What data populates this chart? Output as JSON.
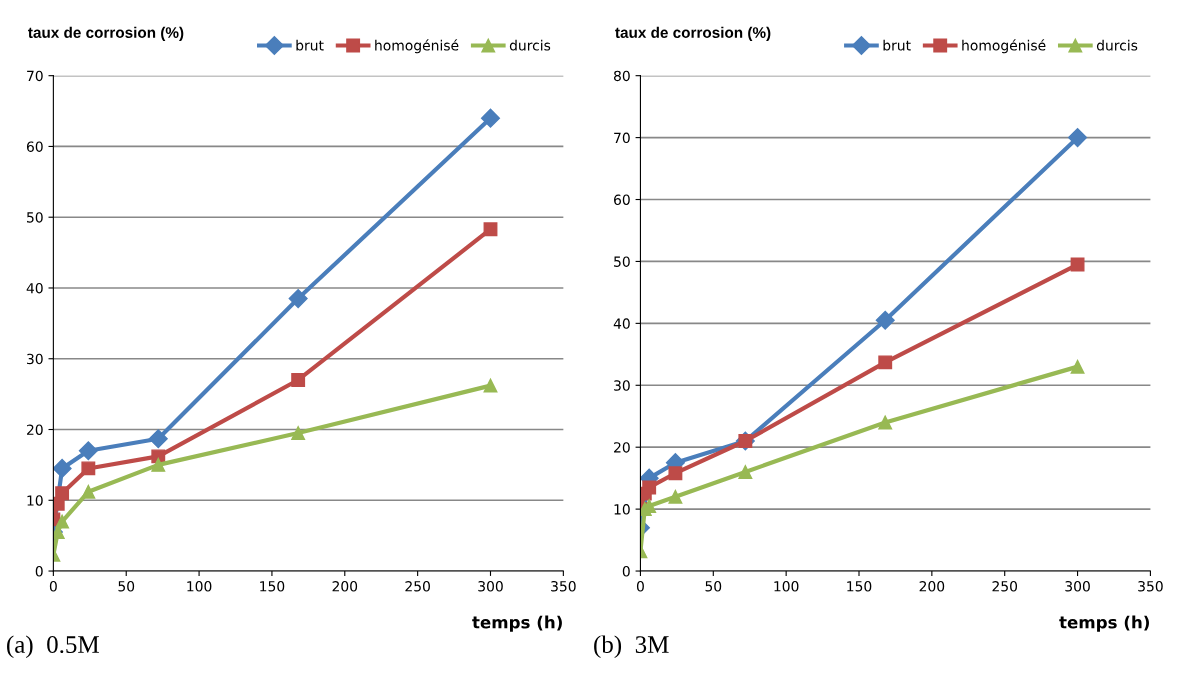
{
  "chart_data": [
    {
      "type": "line",
      "ylabel": "taux de corrosion (%)",
      "xlabel": "temps (h)",
      "annotations": [
        "(a)  0.5M"
      ],
      "xlim": [
        0,
        350
      ],
      "xticks": [
        0,
        50,
        100,
        150,
        200,
        250,
        300,
        350
      ],
      "ylim": [
        0,
        70
      ],
      "yticks": [
        0,
        10,
        20,
        30,
        40,
        50,
        60,
        70
      ],
      "grid": "y",
      "legend": "top right",
      "line_style": "solid",
      "series": [
        {
          "name": "brut",
          "color": "#4a7ebb",
          "marker": "diamond",
          "x": [
            0,
            6,
            24,
            72,
            168,
            300
          ],
          "values": [
            5.5,
            14.5,
            17,
            18.7,
            38.5,
            64
          ]
        },
        {
          "name": "homogénisé",
          "color": "#be4b48",
          "marker": "square",
          "x": [
            0,
            3,
            6,
            24,
            72,
            168,
            300
          ],
          "values": [
            7.3,
            9.5,
            11,
            14.5,
            16.2,
            27,
            48.3
          ]
        },
        {
          "name": "durcis",
          "color": "#98b954",
          "marker": "triangle",
          "x": [
            0,
            3,
            6,
            24,
            72,
            168,
            300
          ],
          "values": [
            2.3,
            5.5,
            7,
            11.2,
            15,
            19.5,
            26.2
          ]
        }
      ]
    },
    {
      "type": "line",
      "ylabel": "taux de corrosion (%)",
      "xlabel": "temps (h)",
      "annotations": [
        "(b)  3M"
      ],
      "xlim": [
        0,
        350
      ],
      "xticks": [
        0,
        50,
        100,
        150,
        200,
        250,
        300,
        350
      ],
      "ylim": [
        0,
        80
      ],
      "yticks": [
        0,
        10,
        20,
        30,
        40,
        50,
        60,
        70,
        80
      ],
      "grid": "y",
      "legend": "top right",
      "line_style": "solid",
      "series": [
        {
          "name": "brut",
          "color": "#4a7ebb",
          "marker": "diamond",
          "x": [
            0,
            6,
            24,
            72,
            168,
            300
          ],
          "values": [
            7,
            15,
            17.5,
            21,
            40.5,
            70
          ]
        },
        {
          "name": "homogénisé",
          "color": "#be4b48",
          "marker": "square",
          "x": [
            0,
            3,
            6,
            24,
            72,
            168,
            300
          ],
          "values": [
            10,
            12.5,
            13.5,
            15.8,
            21,
            33.7,
            49.5
          ]
        },
        {
          "name": "durcis",
          "color": "#98b954",
          "marker": "triangle",
          "x": [
            0,
            3,
            6,
            24,
            72,
            168,
            300
          ],
          "values": [
            3.2,
            10,
            10.5,
            12,
            16,
            24,
            33
          ]
        }
      ]
    }
  ]
}
